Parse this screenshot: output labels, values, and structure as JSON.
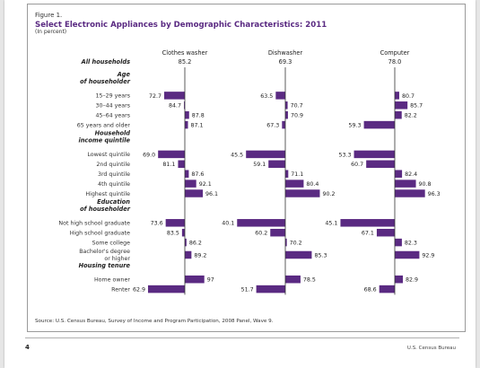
{
  "figure": {
    "label": "Figure 1.",
    "title": "Select Electronic Appliances by Demographic Characteristics: 2011",
    "subtitle": "(In percent)",
    "source": "Source: U.S. Census Bureau, Survey of Income and Program Participation, 2008 Panel, Wave 9."
  },
  "page_footer": {
    "page_number": "4",
    "publisher": "U.S. Census Bureau"
  },
  "colors": {
    "bar": "#5a2a82",
    "axis": "#333333",
    "title": "#5a2a82"
  },
  "chart_data": {
    "type": "bar",
    "orientation": "horizontal-deviation",
    "title": "Select Electronic Appliances by Demographic Characteristics: 2011",
    "unit": "(In percent)",
    "panels": [
      {
        "name": "Clothes washer",
        "baseline": 85.2,
        "baseline_label": "85.2"
      },
      {
        "name": "Dishwasher",
        "baseline": 69.3,
        "baseline_label": "69.3"
      },
      {
        "name": "Computer",
        "baseline": 78.0,
        "baseline_label": "78.0"
      }
    ],
    "overall_label": "All households",
    "groups": [
      {
        "title_lines": [
          "Age",
          "of householder"
        ],
        "rows": [
          {
            "label_lines": [
              "15–29 years"
            ],
            "values": [
              72.7,
              63.5,
              80.7
            ]
          },
          {
            "label_lines": [
              "30–44 years"
            ],
            "values": [
              84.7,
              70.7,
              85.7
            ]
          },
          {
            "label_lines": [
              "45–64 years"
            ],
            "values": [
              87.8,
              70.9,
              82.2
            ]
          },
          {
            "label_lines": [
              "65 years and older"
            ],
            "values": [
              87.1,
              67.3,
              59.3
            ]
          }
        ]
      },
      {
        "title_lines": [
          "Household",
          "income quintile"
        ],
        "rows": [
          {
            "label_lines": [
              "Lowest quintile"
            ],
            "values": [
              69.0,
              45.5,
              53.3
            ]
          },
          {
            "label_lines": [
              "2nd quintile"
            ],
            "values": [
              81.1,
              59.1,
              60.7
            ]
          },
          {
            "label_lines": [
              "3rd quintile"
            ],
            "values": [
              87.6,
              71.1,
              82.4
            ]
          },
          {
            "label_lines": [
              "4th quintile"
            ],
            "values": [
              92.1,
              80.4,
              90.8
            ]
          },
          {
            "label_lines": [
              "Highest quintile"
            ],
            "values": [
              96.1,
              90.2,
              96.3
            ]
          }
        ]
      },
      {
        "title_lines": [
          "Education",
          "of householder"
        ],
        "rows": [
          {
            "label_lines": [
              "Not high school graduate"
            ],
            "values": [
              73.6,
              40.1,
              45.1
            ]
          },
          {
            "label_lines": [
              "High school graduate"
            ],
            "values": [
              83.5,
              60.2,
              67.1
            ]
          },
          {
            "label_lines": [
              "Some college"
            ],
            "values": [
              86.2,
              70.2,
              82.3
            ]
          },
          {
            "label_lines": [
              "Bachelor's degree",
              "or higher"
            ],
            "values": [
              89.2,
              85.3,
              92.9
            ]
          }
        ]
      },
      {
        "title_lines": [
          "Housing tenure"
        ],
        "rows": [
          {
            "label_lines": [
              "Home owner"
            ],
            "values": [
              97,
              78.5,
              82.9
            ]
          },
          {
            "label_lines": [
              "Renter"
            ],
            "values": [
              62.9,
              51.7,
              68.6
            ]
          }
        ]
      }
    ],
    "value_labels": [
      [
        "72.7",
        "84.7",
        "87.8",
        "87.1",
        "69.0",
        "81.1",
        "87.6",
        "92.1",
        "96.1",
        "73.6",
        "83.5",
        "86.2",
        "89.2",
        "97",
        "62.9"
      ],
      [
        "63.5",
        "70.7",
        "70.9",
        "67.3",
        "45.5",
        "59.1",
        "71.1",
        "80.4",
        "90.2",
        "40.1",
        "60.2",
        "70.2",
        "85.3",
        "78.5",
        "51.7"
      ],
      [
        "80.7",
        "85.7",
        "82.2",
        "59.3",
        "53.3",
        "60.7",
        "82.4",
        "90.8",
        "96.3",
        "45.1",
        "67.1",
        "82.3",
        "92.9",
        "82.9",
        "68.6"
      ]
    ]
  }
}
